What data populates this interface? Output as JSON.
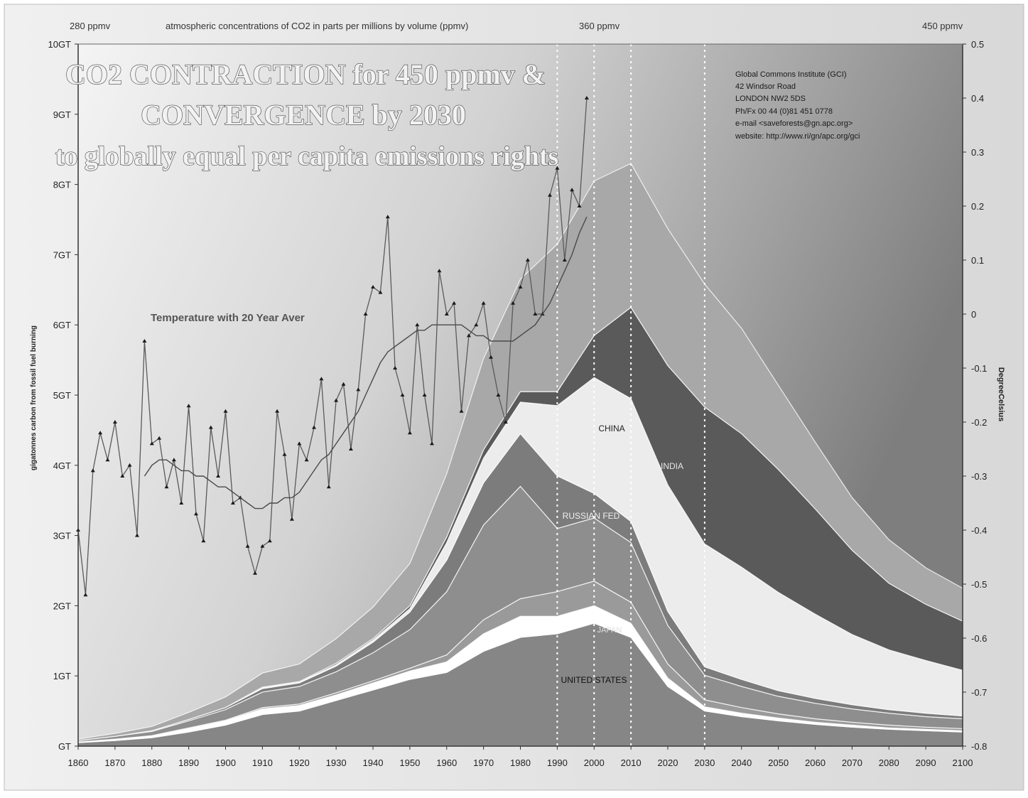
{
  "chart_data": {
    "type": "area",
    "title_lines": [
      "CO2 CONTRACTION for 450 ppmv &",
      "CONVERGENCE by 2030",
      "to globally equal per capita emissions rights"
    ],
    "top_axis": {
      "label": "atmospheric concentrations of CO2 in parts per millions by volume (ppmv)",
      "markers": [
        {
          "label": "280 ppmv"
        },
        {
          "label": "360 ppmv"
        },
        {
          "label": "450 ppmv"
        }
      ]
    },
    "ylabel": "gigatonnes carbon from fossil fuel burning",
    "y2label": "DegreeCelsius",
    "xlim": [
      1860,
      2100
    ],
    "ylim": [
      0,
      10
    ],
    "y2lim": [
      -0.8,
      0.5
    ],
    "x_ticks": [
      "1860",
      "1870",
      "1880",
      "1890",
      "1900",
      "1910",
      "1920",
      "1930",
      "1940",
      "1950",
      "1960",
      "1970",
      "1980",
      "1990",
      "2000",
      "2010",
      "2020",
      "2030",
      "2040",
      "2050",
      "2060",
      "2070",
      "2080",
      "2090",
      "2100"
    ],
    "y_ticks": [
      "GT",
      "1GT",
      "2GT",
      "3GT",
      "4GT",
      "5GT",
      "6GT",
      "7GT",
      "8GT",
      "9GT",
      "10GT"
    ],
    "y2_ticks": [
      "-0.8",
      "-0.7",
      "-0.6",
      "-0.5",
      "-0.4",
      "-0.3",
      "-0.2",
      "-0.1",
      "0",
      "0.1",
      "0.2",
      "0.3",
      "0.4",
      "0.5"
    ],
    "vlines": [
      1990,
      2000,
      2010,
      2030
    ],
    "address_lines": [
      "Global Commons Institute (GCI)",
      "42 Windsor Road",
      "LONDON NW2 5DS",
      "Ph/Fx 00 44 (0)81 451 0778",
      "e-mail <saveforests@gn.apc.org>",
      "website: http://www.ri/gn/apc.org/gci"
    ],
    "temperature_label": "Temperature with 20 Year Aver",
    "colors": {
      "background_light": "#f2f2f2",
      "background_dark": "#8c8c8c",
      "united_states": "#868686",
      "us_band": "#ffffff",
      "japan": "#9a9a9a",
      "middle": "#8e8e8e",
      "russian_fed": "#7c7c7c",
      "china": "#ececec",
      "india": "#5a5a5a",
      "rest_of_world": "#a8a8a8",
      "temperature_line": "#5a5a5a"
    },
    "x": [
      1860,
      1870,
      1880,
      1890,
      1900,
      1910,
      1920,
      1930,
      1940,
      1950,
      1960,
      1970,
      1980,
      1990,
      2000,
      2010,
      2020,
      2030,
      2040,
      2050,
      2060,
      2070,
      2080,
      2090,
      2100
    ],
    "series": [
      {
        "name": "UNITED STATES",
        "values": [
          0.05,
          0.08,
          0.12,
          0.2,
          0.3,
          0.45,
          0.5,
          0.65,
          0.8,
          0.95,
          1.05,
          1.35,
          1.55,
          1.6,
          1.75,
          1.55,
          0.85,
          0.5,
          0.42,
          0.36,
          0.31,
          0.27,
          0.24,
          0.22,
          0.2
        ]
      },
      {
        "name": "",
        "values": [
          0.01,
          0.02,
          0.03,
          0.05,
          0.06,
          0.08,
          0.08,
          0.08,
          0.1,
          0.12,
          0.15,
          0.25,
          0.3,
          0.25,
          0.25,
          0.2,
          0.12,
          0.06,
          0.05,
          0.04,
          0.03,
          0.03,
          0.02,
          0.02,
          0.02
        ]
      },
      {
        "name": "JAPAN",
        "values": [
          0.0,
          0.0,
          0.0,
          0.01,
          0.01,
          0.02,
          0.02,
          0.03,
          0.03,
          0.04,
          0.1,
          0.2,
          0.25,
          0.35,
          0.35,
          0.3,
          0.2,
          0.1,
          0.08,
          0.06,
          0.05,
          0.04,
          0.04,
          0.03,
          0.03
        ]
      },
      {
        "name": "",
        "values": [
          0.02,
          0.04,
          0.06,
          0.1,
          0.15,
          0.22,
          0.25,
          0.3,
          0.4,
          0.55,
          0.9,
          1.35,
          1.6,
          0.9,
          0.9,
          0.85,
          0.55,
          0.35,
          0.3,
          0.25,
          0.22,
          0.19,
          0.17,
          0.15,
          0.14
        ]
      },
      {
        "name": "RUSSIAN FED",
        "values": [
          0.0,
          0.0,
          0.01,
          0.02,
          0.03,
          0.05,
          0.05,
          0.08,
          0.15,
          0.25,
          0.45,
          0.6,
          0.75,
          0.75,
          0.35,
          0.3,
          0.2,
          0.12,
          0.1,
          0.08,
          0.07,
          0.06,
          0.05,
          0.05,
          0.04
        ]
      },
      {
        "name": "CHINA",
        "values": [
          0.0,
          0.0,
          0.0,
          0.0,
          0.0,
          0.01,
          0.01,
          0.02,
          0.03,
          0.05,
          0.25,
          0.35,
          0.45,
          1.0,
          1.65,
          1.75,
          1.8,
          1.75,
          1.6,
          1.4,
          1.2,
          1.0,
          0.85,
          0.75,
          0.65
        ]
      },
      {
        "name": "INDIA",
        "values": [
          0.0,
          0.0,
          0.0,
          0.0,
          0.0,
          0.01,
          0.01,
          0.02,
          0.02,
          0.04,
          0.08,
          0.12,
          0.15,
          0.2,
          0.6,
          1.3,
          1.7,
          1.95,
          1.9,
          1.75,
          1.5,
          1.2,
          0.95,
          0.8,
          0.7
        ]
      },
      {
        "name": "",
        "values": [
          0.02,
          0.04,
          0.06,
          0.1,
          0.15,
          0.2,
          0.25,
          0.35,
          0.45,
          0.6,
          0.9,
          1.3,
          1.6,
          2.1,
          2.2,
          2.05,
          1.95,
          1.75,
          1.5,
          1.2,
          0.95,
          0.75,
          0.62,
          0.52,
          0.47
        ]
      }
    ],
    "region_labels": [
      "UNITED STATES",
      "JAPAN",
      "RUSSIAN FED",
      "CHINA",
      "INDIA"
    ],
    "temperature": {
      "name": "Temperature with 20 Year Aver",
      "years": [
        1860,
        1862,
        1864,
        1866,
        1868,
        1870,
        1872,
        1874,
        1876,
        1878,
        1880,
        1882,
        1884,
        1886,
        1888,
        1890,
        1892,
        1894,
        1896,
        1898,
        1900,
        1902,
        1904,
        1906,
        1908,
        1910,
        1912,
        1914,
        1916,
        1918,
        1920,
        1922,
        1924,
        1926,
        1928,
        1930,
        1932,
        1934,
        1936,
        1938,
        1940,
        1942,
        1944,
        1946,
        1948,
        1950,
        1952,
        1954,
        1956,
        1958,
        1960,
        1962,
        1964,
        1966,
        1968,
        1970,
        1972,
        1974,
        1976,
        1978,
        1980,
        1982,
        1984,
        1986,
        1988,
        1990,
        1992,
        1994,
        1996,
        1998
      ],
      "annual": [
        -0.4,
        -0.52,
        -0.29,
        -0.22,
        -0.27,
        -0.2,
        -0.3,
        -0.28,
        -0.41,
        -0.05,
        -0.24,
        -0.23,
        -0.32,
        -0.27,
        -0.35,
        -0.17,
        -0.37,
        -0.42,
        -0.21,
        -0.3,
        -0.18,
        -0.35,
        -0.34,
        -0.43,
        -0.48,
        -0.43,
        -0.42,
        -0.18,
        -0.26,
        -0.38,
        -0.24,
        -0.27,
        -0.21,
        -0.12,
        -0.32,
        -0.16,
        -0.13,
        -0.25,
        -0.14,
        0.0,
        0.05,
        0.04,
        0.18,
        -0.1,
        -0.15,
        -0.22,
        -0.02,
        -0.15,
        -0.24,
        0.08,
        0.0,
        0.02,
        -0.18,
        -0.04,
        -0.02,
        0.02,
        -0.08,
        -0.15,
        -0.2,
        0.02,
        0.05,
        0.1,
        0.0,
        0.0,
        0.22,
        0.27,
        0.1,
        0.23,
        0.2,
        0.4
      ],
      "smoothed": [
        null,
        null,
        null,
        null,
        null,
        null,
        null,
        null,
        null,
        -0.3,
        -0.28,
        -0.27,
        -0.27,
        -0.28,
        -0.29,
        -0.29,
        -0.3,
        -0.3,
        -0.31,
        -0.32,
        -0.32,
        -0.33,
        -0.34,
        -0.35,
        -0.36,
        -0.36,
        -0.35,
        -0.35,
        -0.34,
        -0.34,
        -0.33,
        -0.31,
        -0.29,
        -0.27,
        -0.26,
        -0.24,
        -0.22,
        -0.2,
        -0.18,
        -0.15,
        -0.12,
        -0.09,
        -0.07,
        -0.06,
        -0.05,
        -0.04,
        -0.03,
        -0.03,
        -0.02,
        -0.02,
        -0.02,
        -0.02,
        -0.02,
        -0.03,
        -0.04,
        -0.04,
        -0.05,
        -0.05,
        -0.05,
        -0.05,
        -0.04,
        -0.03,
        -0.02,
        0.0,
        0.02,
        0.05,
        0.08,
        0.11,
        0.15,
        0.18
      ]
    }
  }
}
